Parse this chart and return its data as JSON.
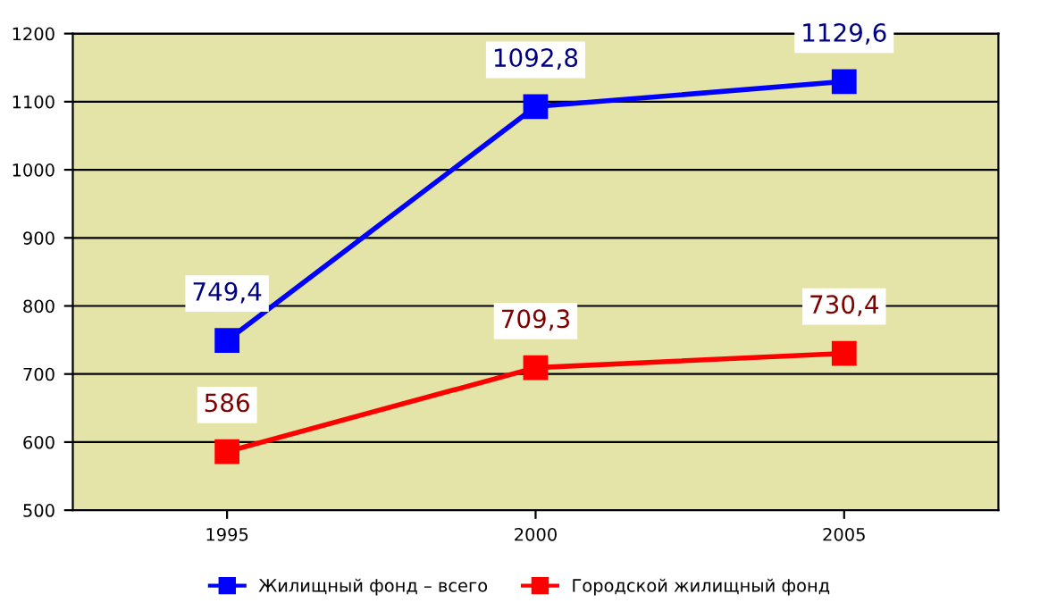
{
  "chart_data": {
    "type": "line",
    "categories": [
      "1995",
      "2000",
      "2005"
    ],
    "series": [
      {
        "name": "Жилищный фонд – всего",
        "color": "#0000ff",
        "values": [
          749.4,
          1092.8,
          1129.6
        ],
        "value_labels": [
          "749,4",
          "1092,8",
          "1129,6"
        ]
      },
      {
        "name": "Городской жилищный фонд",
        "color": "#ff0000",
        "values": [
          586,
          709.3,
          730.4
        ],
        "value_labels": [
          "586",
          "709,3",
          "730,4"
        ]
      }
    ],
    "ylim": [
      500,
      1200
    ],
    "yticks": [
      500,
      600,
      700,
      800,
      900,
      1000,
      1100,
      1200
    ],
    "grid": "y",
    "legend": "bottom",
    "marker": "square",
    "line_style": "solid"
  }
}
